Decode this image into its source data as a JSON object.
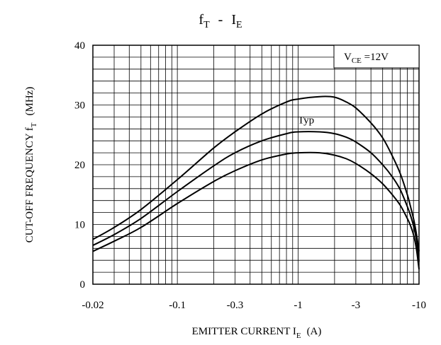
{
  "chart_data": {
    "type": "line",
    "title": {
      "main": "f",
      "main_sub": "T",
      "sep": "-",
      "var": "I",
      "var_sub": "E"
    },
    "xlabel": {
      "text": "EMITTER CURRENT I",
      "sub": "E",
      "unit": "(A)"
    },
    "ylabel": {
      "text": "CUT-OFF FREQUENCY f",
      "sub": "T",
      "unit": "(MHz)"
    },
    "x_scale": "log",
    "x_axis_note": "emitter current is negative; axis shows |I_E| on log scale",
    "xlim": [
      -0.02,
      -10
    ],
    "ylim": [
      0,
      40
    ],
    "x_ticks": [
      {
        "value": -0.02,
        "label": "-0.02"
      },
      {
        "value": -0.1,
        "label": "-0.1"
      },
      {
        "value": -0.3,
        "label": "-0.3"
      },
      {
        "value": -1,
        "label": "-1"
      },
      {
        "value": -3,
        "label": "-3"
      },
      {
        "value": -10,
        "label": "-10"
      }
    ],
    "y_ticks": [
      {
        "value": 0,
        "label": "0"
      },
      {
        "value": 10,
        "label": "10"
      },
      {
        "value": 20,
        "label": "20"
      },
      {
        "value": 30,
        "label": "30"
      },
      {
        "value": 40,
        "label": "40"
      }
    ],
    "grid": true,
    "condition_box": {
      "text": "V",
      "sub": "CE",
      "rest": " =12V",
      "placement": "top-right"
    },
    "annotations": [
      {
        "text": "Typ",
        "x": -1.2,
        "y": 27.5
      }
    ],
    "series": [
      {
        "x": [
          -0.02,
          -0.03,
          -0.05,
          -0.1,
          -0.2,
          -0.3,
          -0.5,
          -0.8,
          -1,
          -1.5,
          -2,
          -2.5,
          -3,
          -4,
          -5,
          -6,
          -7,
          -8,
          -8.5,
          -9,
          -9.5,
          -10
        ],
        "y": [
          7.5,
          9.5,
          12.5,
          17.5,
          22.8,
          25.5,
          28.5,
          30.5,
          31.0,
          31.4,
          31.3,
          30.5,
          29.5,
          27.0,
          24.5,
          21.5,
          18.5,
          15.0,
          13.0,
          11.0,
          8.5,
          5.5
        ]
      },
      {
        "x": [
          -0.02,
          -0.03,
          -0.05,
          -0.1,
          -0.2,
          -0.3,
          -0.5,
          -0.8,
          -1,
          -1.5,
          -2,
          -2.5,
          -3,
          -4,
          -5,
          -6,
          -7,
          -8,
          -8.5,
          -9,
          -9.5,
          -10
        ],
        "y": [
          6.5,
          8.3,
          11.0,
          15.5,
          19.8,
          22.0,
          24.0,
          25.2,
          25.5,
          25.5,
          25.2,
          24.6,
          23.8,
          22.0,
          20.0,
          18.0,
          15.8,
          13.0,
          11.5,
          9.8,
          7.5,
          3.8
        ]
      },
      {
        "x": [
          -0.02,
          -0.03,
          -0.05,
          -0.1,
          -0.2,
          -0.3,
          -0.5,
          -0.8,
          -1,
          -1.5,
          -2,
          -2.5,
          -3,
          -4,
          -5,
          -6,
          -7,
          -8,
          -8.5,
          -9,
          -9.5,
          -10
        ],
        "y": [
          5.5,
          7.2,
          9.5,
          13.5,
          17.2,
          19.0,
          20.8,
          21.8,
          22.0,
          22.0,
          21.6,
          21.0,
          20.2,
          18.5,
          16.8,
          15.0,
          13.2,
          11.0,
          9.8,
          8.3,
          6.0,
          2.5
        ]
      }
    ]
  }
}
